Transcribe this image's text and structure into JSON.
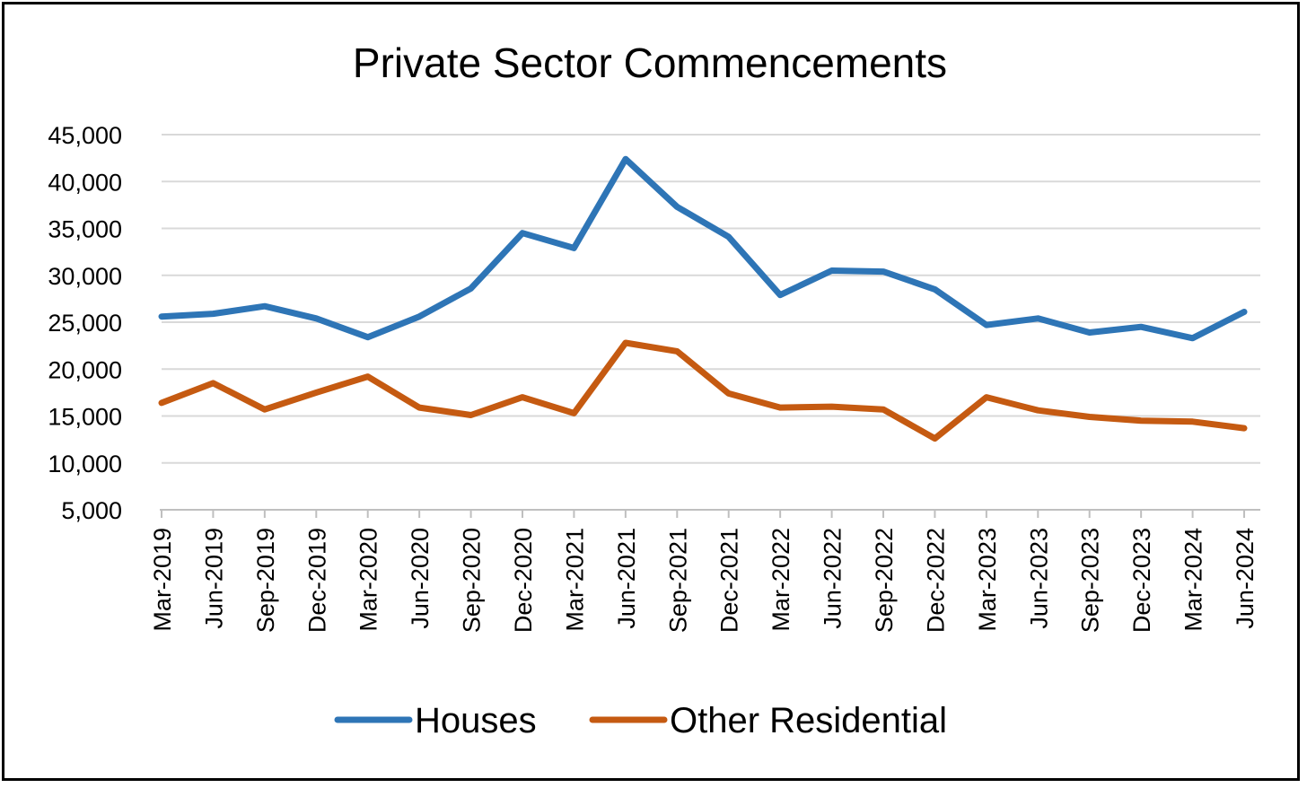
{
  "chart_data": {
    "type": "line",
    "title": "Private Sector Commencements",
    "xlabel": "",
    "ylabel": "",
    "ylim": [
      5000,
      45000
    ],
    "yticks": [
      "5,000",
      "10,000",
      "15,000",
      "20,000",
      "25,000",
      "30,000",
      "35,000",
      "40,000",
      "45,000"
    ],
    "ytick_values": [
      5000,
      10000,
      15000,
      20000,
      25000,
      30000,
      35000,
      40000,
      45000
    ],
    "grid": true,
    "legend_position": "bottom",
    "categories": [
      "Mar-2019",
      "Jun-2019",
      "Sep-2019",
      "Dec-2019",
      "Mar-2020",
      "Jun-2020",
      "Sep-2020",
      "Dec-2020",
      "Mar-2021",
      "Jun-2021",
      "Sep-2021",
      "Dec-2021",
      "Mar-2022",
      "Jun-2022",
      "Sep-2022",
      "Dec-2022",
      "Mar-2023",
      "Jun-2023",
      "Sep-2023",
      "Dec-2023",
      "Mar-2024",
      "Jun-2024"
    ],
    "series": [
      {
        "name": "Houses",
        "color": "#2e75b6",
        "values": [
          25600,
          25900,
          26700,
          25400,
          23400,
          25600,
          28600,
          34500,
          32900,
          42400,
          37300,
          34100,
          27900,
          30500,
          30400,
          28500,
          24700,
          25400,
          23900,
          24500,
          23300,
          26100
        ]
      },
      {
        "name": "Other Residential",
        "color": "#c55a11",
        "values": [
          16400,
          18500,
          15700,
          17500,
          19200,
          15900,
          15100,
          17000,
          15300,
          22800,
          21900,
          17400,
          15900,
          16000,
          15700,
          12600,
          17000,
          15600,
          14900,
          14500,
          14400,
          13700
        ]
      }
    ]
  }
}
